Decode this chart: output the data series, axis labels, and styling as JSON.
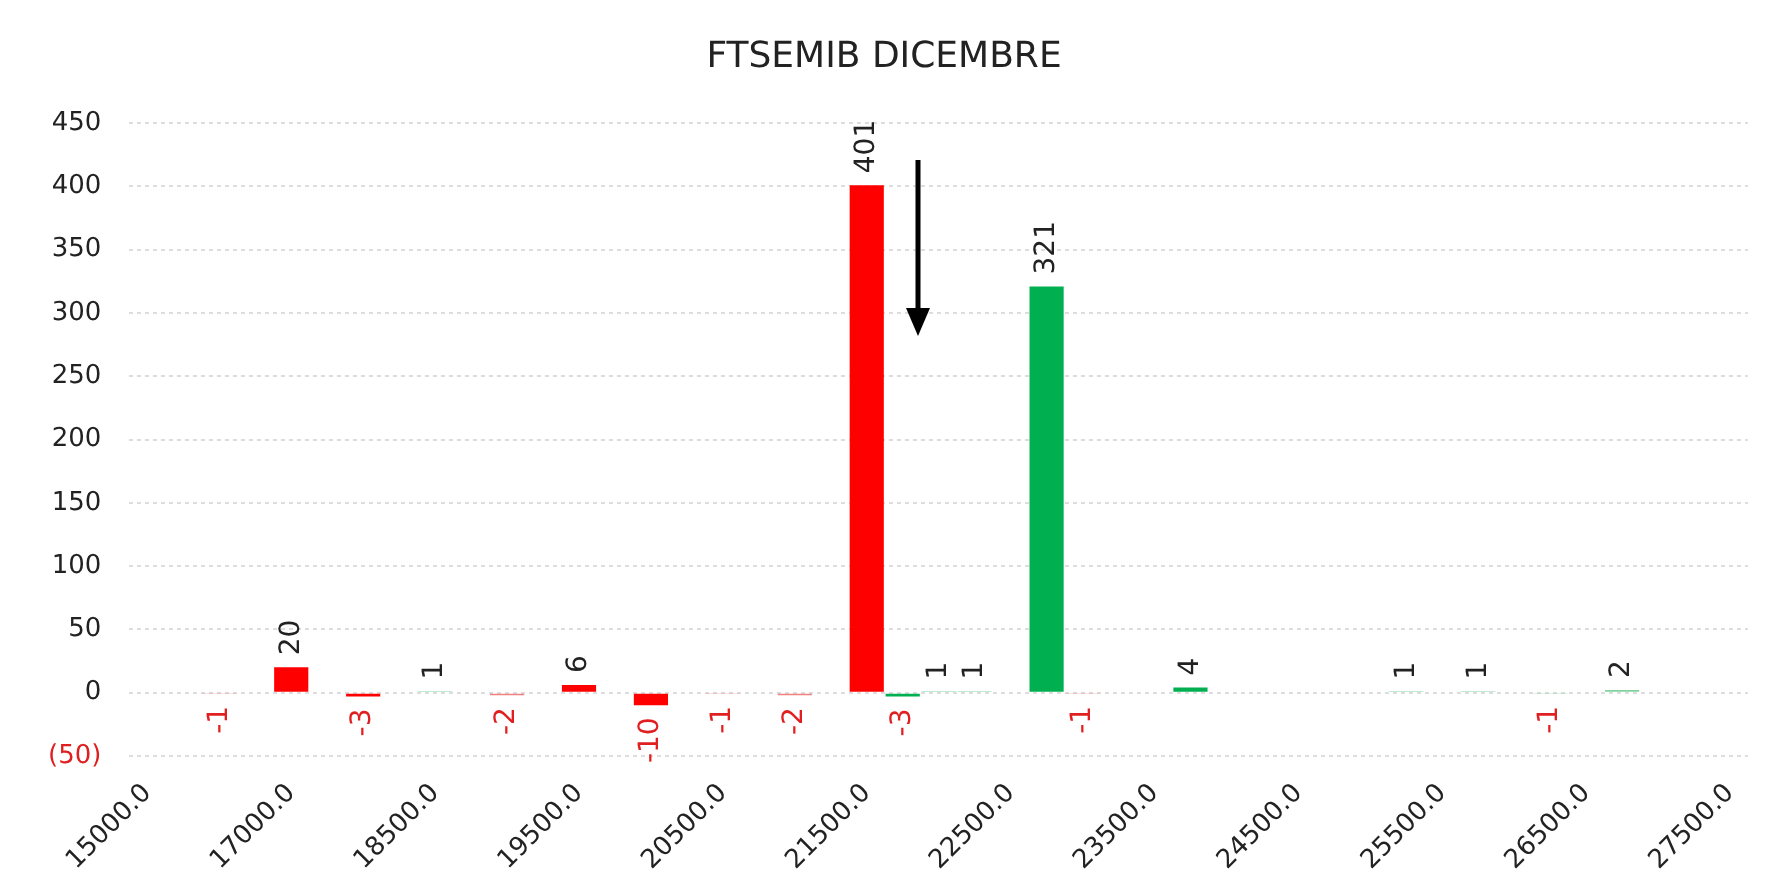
{
  "chart_data": {
    "type": "bar",
    "title": "FTSEMIB DICEMBRE",
    "categories": [
      "15000.0",
      null,
      null,
      null,
      "17000.0",
      null,
      null,
      null,
      "18500.0",
      null,
      null,
      null,
      "19500.0",
      null,
      null,
      null,
      "20500.0",
      null,
      null,
      null,
      "21500.0",
      null,
      null,
      null,
      "22500.0",
      null,
      null,
      null,
      "23500.0",
      null,
      null,
      null,
      "24500.0",
      null,
      null,
      null,
      "25500.0",
      null,
      null,
      null,
      "26500.0",
      null,
      null,
      null,
      "27500.0"
    ],
    "values": [
      null,
      null,
      -1,
      null,
      20,
      null,
      -3,
      null,
      1,
      null,
      -2,
      null,
      6,
      null,
      -10,
      null,
      -1,
      null,
      -2,
      null,
      401,
      -3,
      1,
      1,
      null,
      321,
      -1,
      null,
      null,
      4,
      null,
      null,
      null,
      null,
      null,
      1,
      null,
      1,
      null,
      -1,
      null,
      2,
      null,
      null,
      null
    ],
    "colors": [
      "#ff0000",
      "#ff0000",
      "#f08080",
      "#ff0000",
      "#ff0000",
      "#ff0000",
      "#ff0000",
      "#ff0000",
      "#00b050",
      "#ff0000",
      "#f08080",
      "#ff0000",
      "#ff0000",
      "#ff0000",
      "#ff0000",
      "#ff0000",
      "#f08080",
      "#ff0000",
      "#f08080",
      "#ff0000",
      "#ff0000",
      "#00b050",
      "#00b050",
      "#00b050",
      "#00b050",
      "#00b050",
      "#f08080",
      "#00b050",
      "#00b050",
      "#00b050",
      "#00b050",
      "#00b050",
      "#00b050",
      "#00b050",
      "#00b050",
      "#00b050",
      "#00b050",
      "#00b050",
      "#00b050",
      "#7fd4a0",
      "#00b050",
      "#7fd4a0",
      "#00b050",
      "#00b050",
      "#00b050"
    ],
    "ylim": [
      -50,
      450
    ],
    "yticks": [
      {
        "value": -50,
        "label": "(50)"
      },
      0,
      50,
      100,
      150,
      200,
      250,
      300,
      350,
      400,
      450
    ],
    "grid": "y",
    "legend": false,
    "data_labels": true
  }
}
